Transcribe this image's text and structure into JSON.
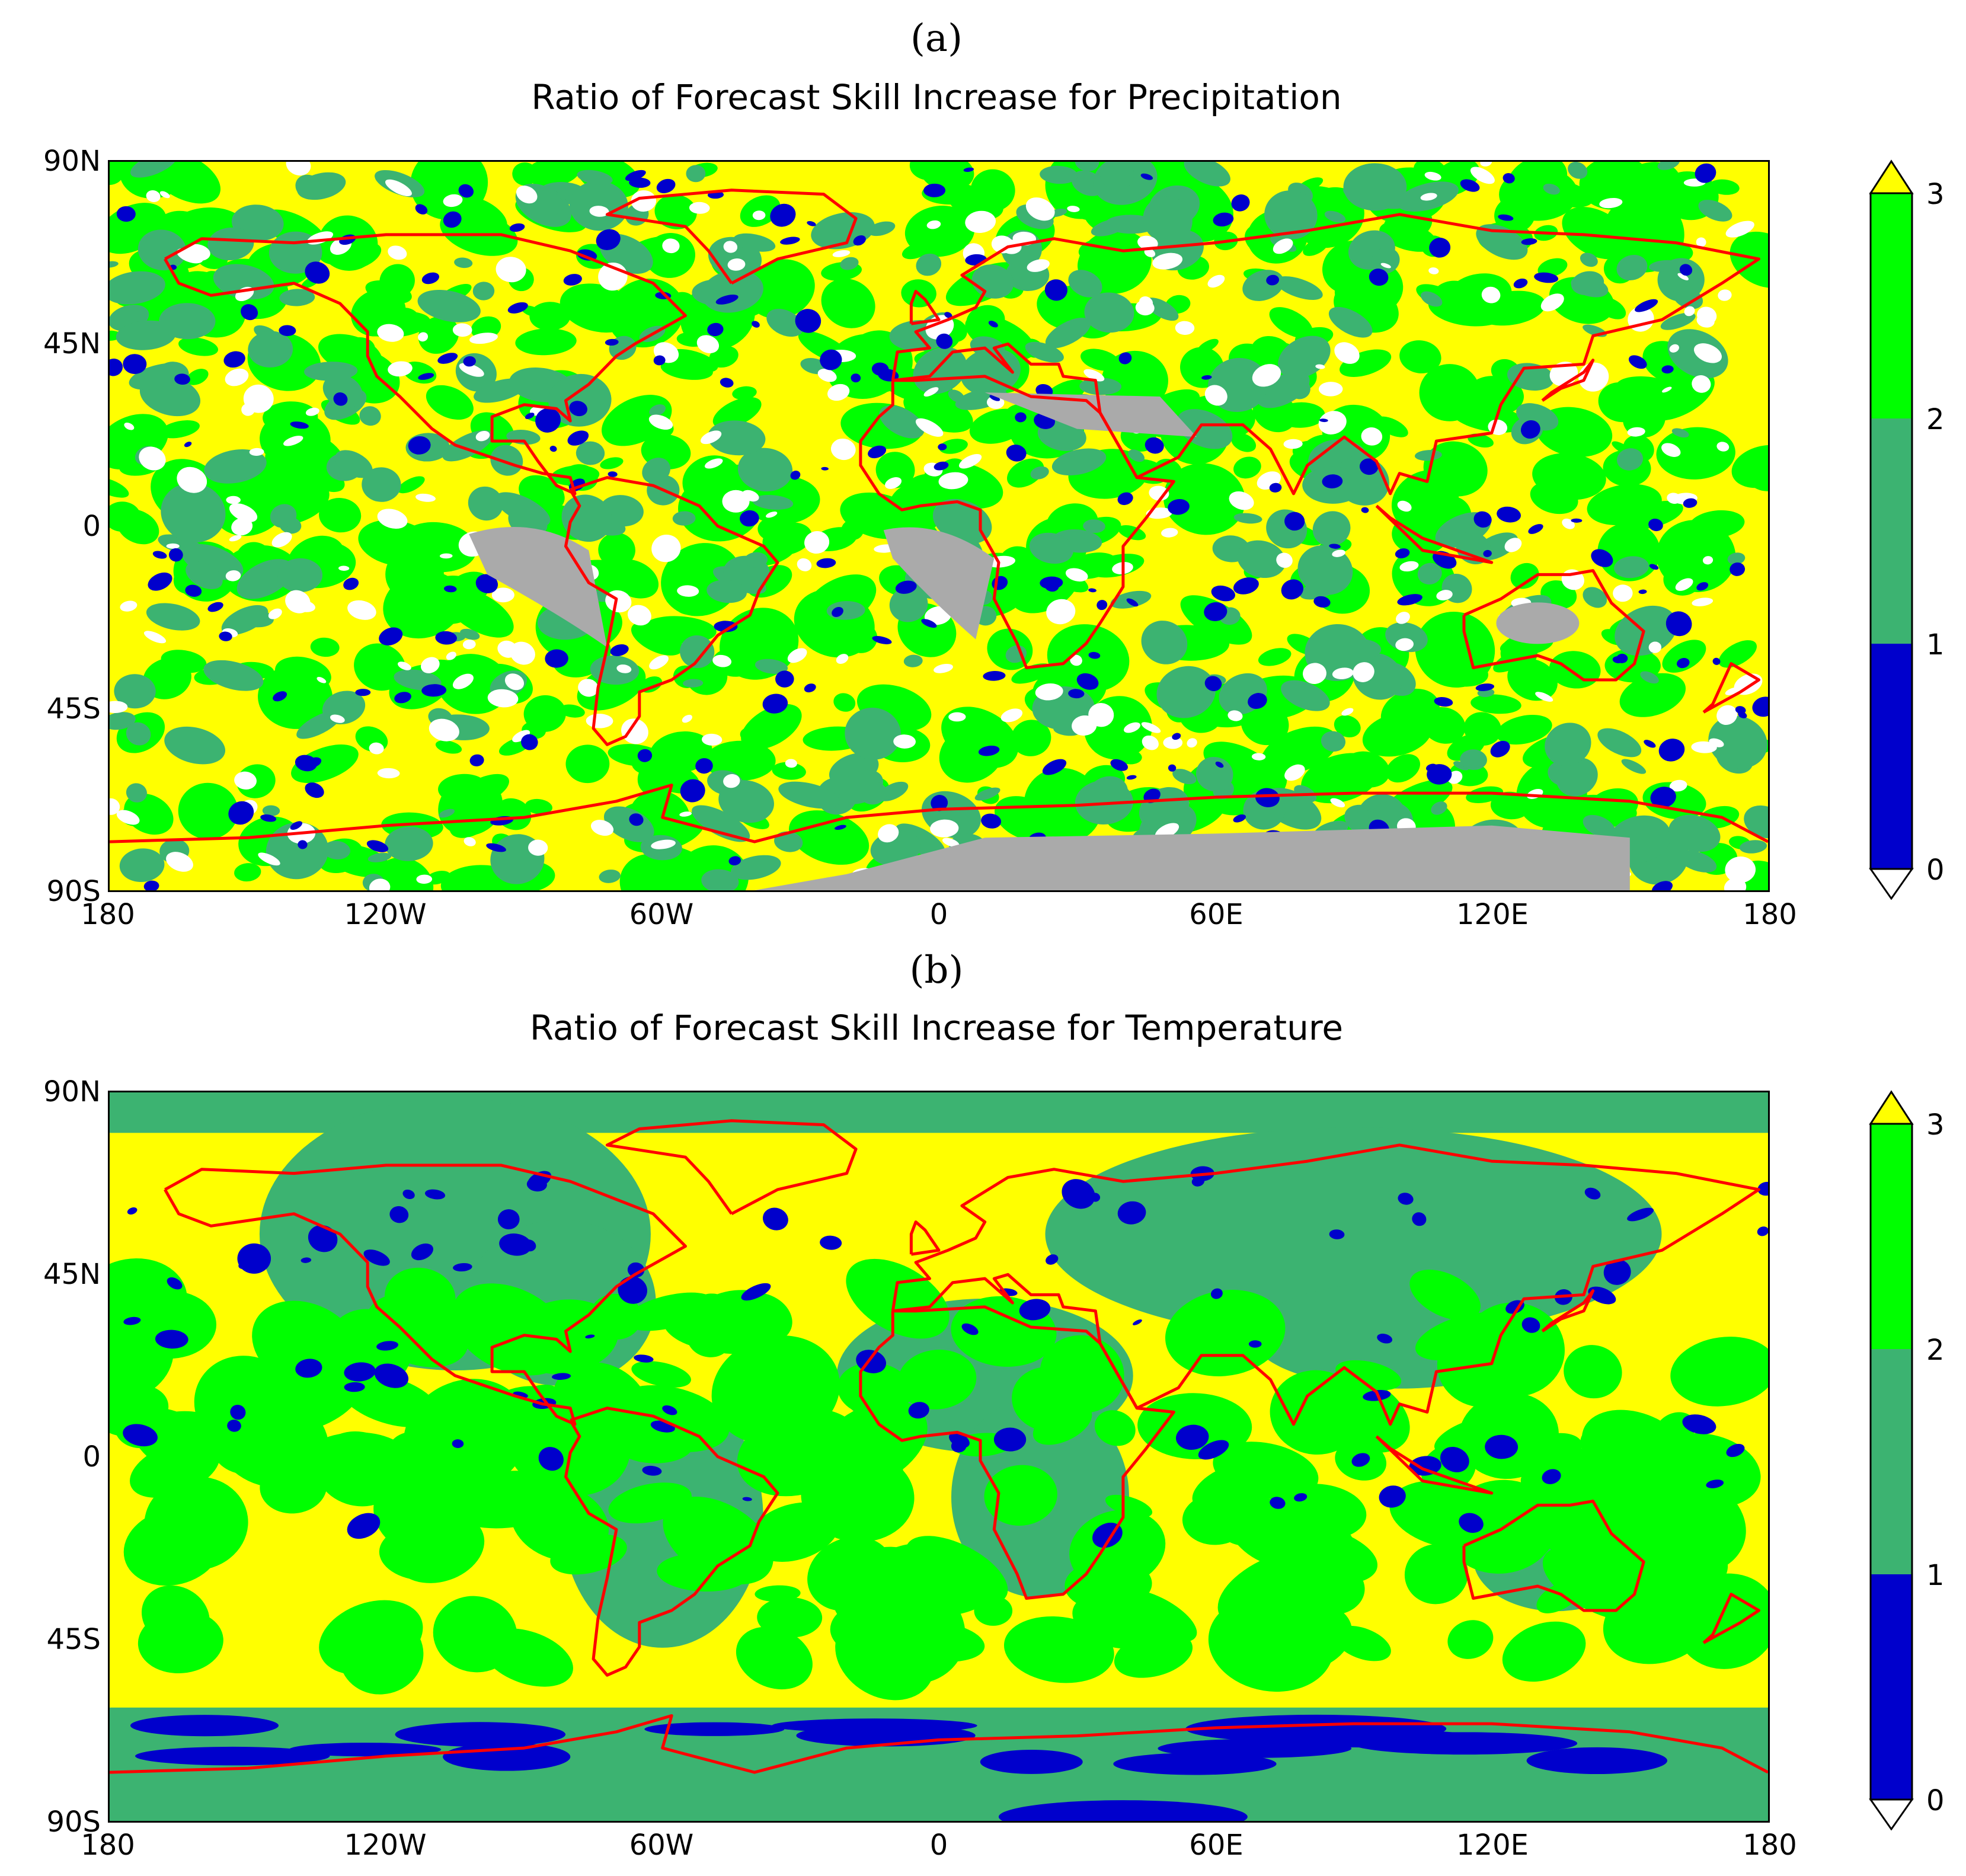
{
  "panels": [
    {
      "letter": "(a)",
      "title": "Ratio of Forecast Skill Increase for Precipitation",
      "base_color": "#ffff00"
    },
    {
      "letter": "(b)",
      "title": "Ratio of Forecast Skill Increase for Temperature",
      "base_color": "#ffff00"
    }
  ],
  "axes": {
    "y_ticks": [
      "90N",
      "45N",
      "0",
      "45S",
      "90S"
    ],
    "x_ticks": [
      "180",
      "120W",
      "60W",
      "0",
      "60E",
      "120E",
      "180"
    ]
  },
  "colorbar": {
    "labels": [
      "0",
      "1",
      "2",
      "3"
    ],
    "colors": {
      "0-1": "#0000cc",
      "1-2": "#3cb371",
      "2-3": "#00ff00",
      "over": "#ffff00",
      "under": "#ffffff",
      "missing": "#aaaaaa",
      "coastline": "#ff0000"
    }
  }
}
